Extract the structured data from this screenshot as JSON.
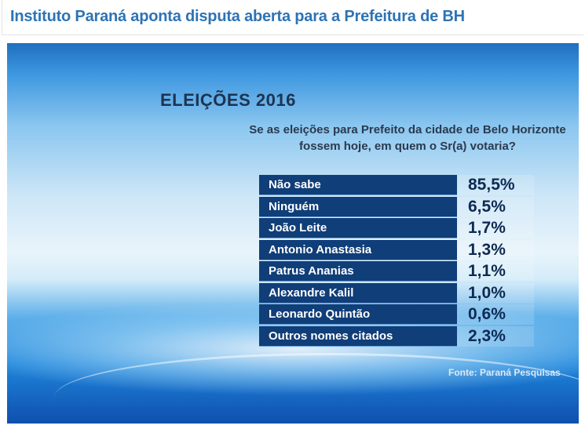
{
  "article": {
    "title": "Instituto Paraná aponta disputa aberta para a Prefeitura de BH"
  },
  "tv_graphic": {
    "heading": "ELEIÇÕES 2016",
    "question_line1": "Se as eleições para Prefeito da cidade de Belo Horizonte",
    "question_line2": "fossem hoje, em quem o Sr(a) votaria?",
    "rows": [
      {
        "label": "Não sabe",
        "value": "85,5%"
      },
      {
        "label": "Ninguém",
        "value": "6,5%"
      },
      {
        "label": "João Leite",
        "value": "1,7%"
      },
      {
        "label": "Antonio Anastasia",
        "value": "1,3%"
      },
      {
        "label": "Patrus Ananias",
        "value": "1,1%"
      },
      {
        "label": "Alexandre Kalil",
        "value": "1,0%"
      },
      {
        "label": "Leonardo Quintão",
        "value": "0,6%"
      },
      {
        "label": "Outros nomes citados",
        "value": "2,3%"
      }
    ],
    "source": "Fonte: Paraná Pesquisas"
  },
  "colors": {
    "title": "#2d73b4",
    "row_label_bg": "#103e78",
    "value_text": "#0d2a52"
  }
}
